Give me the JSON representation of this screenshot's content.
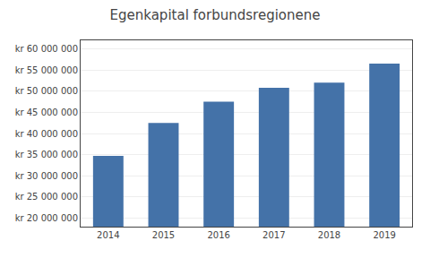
{
  "chart_data": {
    "type": "bar",
    "title": "Egenkapital forbundsregionene",
    "categories": [
      "2014",
      "2015",
      "2016",
      "2017",
      "2018",
      "2019"
    ],
    "values": [
      34700000,
      42500000,
      47500000,
      50800000,
      52000000,
      56500000
    ],
    "color": "#4472a8",
    "ylim": [
      18000000,
      62000000
    ],
    "yticks": [
      {
        "value": 20000000,
        "label": "kr 20 000 000"
      },
      {
        "value": 25000000,
        "label": "kr 25 000 000"
      },
      {
        "value": 30000000,
        "label": "kr 30 000 000"
      },
      {
        "value": 35000000,
        "label": "kr 35 000 000"
      },
      {
        "value": 40000000,
        "label": "kr 40 000 000"
      },
      {
        "value": 45000000,
        "label": "kr 45 000 000"
      },
      {
        "value": 50000000,
        "label": "kr 50 000 000"
      },
      {
        "value": 55000000,
        "label": "kr 55 000 000"
      },
      {
        "value": 60000000,
        "label": "kr 60 000 000"
      }
    ],
    "grid": true
  }
}
